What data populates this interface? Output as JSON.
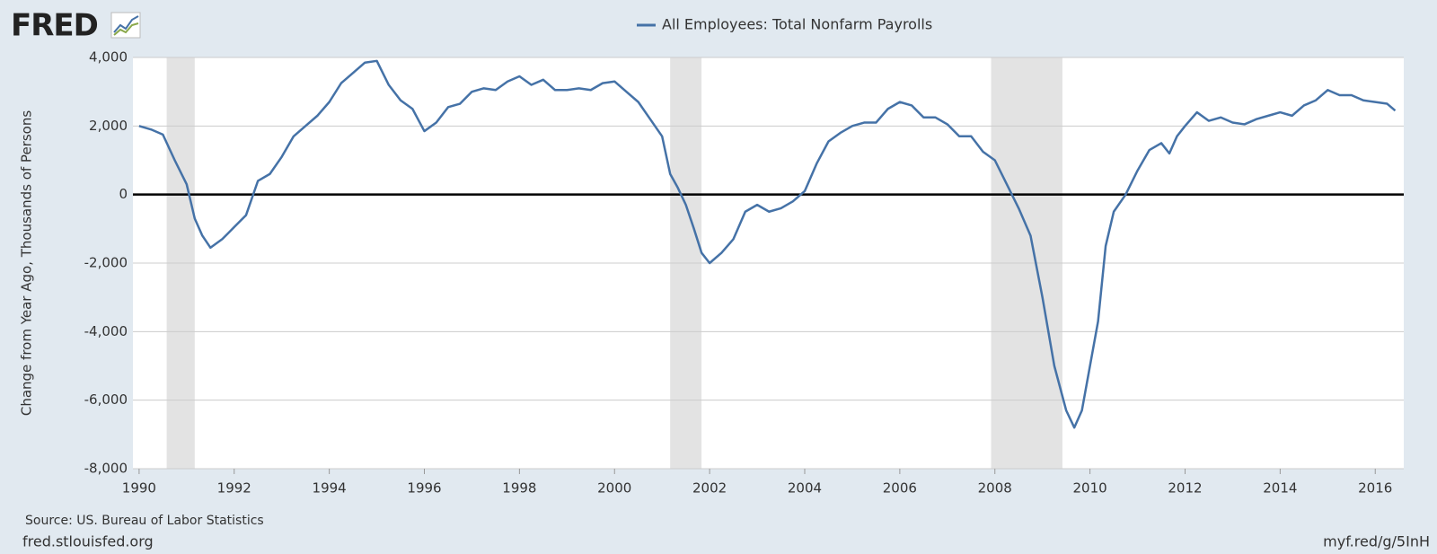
{
  "logo": "FRED",
  "chart_data": {
    "type": "line",
    "series": [
      {
        "name": "All Employees: Total Nonfarm Payrolls",
        "color": "#4572a7",
        "values": [
          2000,
          1900,
          1750,
          1000,
          300,
          -700,
          -1200,
          -1550,
          -1300,
          -950,
          -600,
          400,
          600,
          1100,
          1700,
          2000,
          2300,
          2700,
          3250,
          3550,
          3850,
          3900,
          3200,
          2750,
          2500,
          1850,
          2100,
          2550,
          2650,
          3000,
          3100,
          3050,
          3300,
          3450,
          3200,
          3350,
          3050,
          3050,
          3100,
          3050,
          3250,
          3300,
          3000,
          2700,
          2200,
          1700,
          600,
          200,
          -300,
          -1000,
          -1700,
          -2000,
          -1700,
          -1300,
          -500,
          -300,
          -500,
          -400,
          -200,
          100,
          900,
          1550,
          1800,
          2000,
          2100,
          2100,
          2500,
          2700,
          2600,
          2250,
          2250,
          2050,
          1700,
          1700,
          1250,
          1000,
          300,
          -400,
          -1200,
          -3000,
          -5000,
          -6300,
          -6800,
          -6300,
          -5000,
          -3700,
          -1500,
          -500,
          0,
          700,
          1300,
          1500,
          1200,
          1700,
          2000,
          2400,
          2150,
          2250,
          2100,
          2050,
          2200,
          2300,
          2400,
          2300,
          2600,
          2750,
          3050,
          2900,
          2900,
          2750,
          2700,
          2650,
          2450
        ]
      }
    ],
    "x": [
      1990.0,
      1990.25,
      1990.5,
      1990.75,
      1991.0,
      1991.17,
      1991.33,
      1991.5,
      1991.75,
      1992.0,
      1992.25,
      1992.5,
      1992.75,
      1993.0,
      1993.25,
      1993.5,
      1993.75,
      1994.0,
      1994.25,
      1994.5,
      1994.75,
      1995.0,
      1995.25,
      1995.5,
      1995.75,
      1996.0,
      1996.25,
      1996.5,
      1996.75,
      1997.0,
      1997.25,
      1997.5,
      1997.75,
      1998.0,
      1998.25,
      1998.5,
      1998.75,
      1999.0,
      1999.25,
      1999.5,
      1999.75,
      2000.0,
      2000.25,
      2000.5,
      2000.75,
      2001.0,
      2001.17,
      2001.33,
      2001.5,
      2001.67,
      2001.83,
      2002.0,
      2002.25,
      2002.5,
      2002.75,
      2003.0,
      2003.25,
      2003.5,
      2003.75,
      2004.0,
      2004.25,
      2004.5,
      2004.75,
      2005.0,
      2005.25,
      2005.5,
      2005.75,
      2006.0,
      2006.25,
      2006.5,
      2006.75,
      2007.0,
      2007.25,
      2007.5,
      2007.75,
      2008.0,
      2008.25,
      2008.5,
      2008.75,
      2009.0,
      2009.25,
      2009.5,
      2009.67,
      2009.83,
      2010.0,
      2010.17,
      2010.33,
      2010.5,
      2010.75,
      2011.0,
      2011.25,
      2011.5,
      2011.67,
      2011.83,
      2012.0,
      2012.25,
      2012.5,
      2012.75,
      2013.0,
      2013.25,
      2013.5,
      2013.75,
      2014.0,
      2014.25,
      2014.5,
      2014.75,
      2015.0,
      2015.25,
      2015.5,
      2015.75,
      2016.0,
      2016.25,
      2016.42
    ],
    "recessions": [
      [
        1990.58,
        1991.17
      ],
      [
        2001.17,
        2001.83
      ],
      [
        2007.92,
        2009.42
      ]
    ],
    "recession_color": "#e3e3e3",
    "y_label": "Change from Year Ago, Thousands of Persons",
    "xlim": [
      1989.87,
      2016.6
    ],
    "xticks": [
      1990,
      1992,
      1994,
      1996,
      1998,
      2000,
      2002,
      2004,
      2006,
      2008,
      2010,
      2012,
      2014,
      2016
    ],
    "ylim": [
      -8000,
      4000
    ],
    "yticks": [
      {
        "value": -8000,
        "label": "-8,000"
      },
      {
        "value": -6000,
        "label": "-6,000"
      },
      {
        "value": -4000,
        "label": "-4,000"
      },
      {
        "value": -2000,
        "label": "-2,000"
      },
      0,
      {
        "value": 2000,
        "label": "2,000"
      },
      {
        "value": 4000,
        "label": "4,000"
      }
    ],
    "grid": true,
    "source": "Source: US. Bureau of Labor Statistics"
  },
  "footer": {
    "left": "fred.stlouisfed.org",
    "right": "myf.red/g/5InH"
  }
}
